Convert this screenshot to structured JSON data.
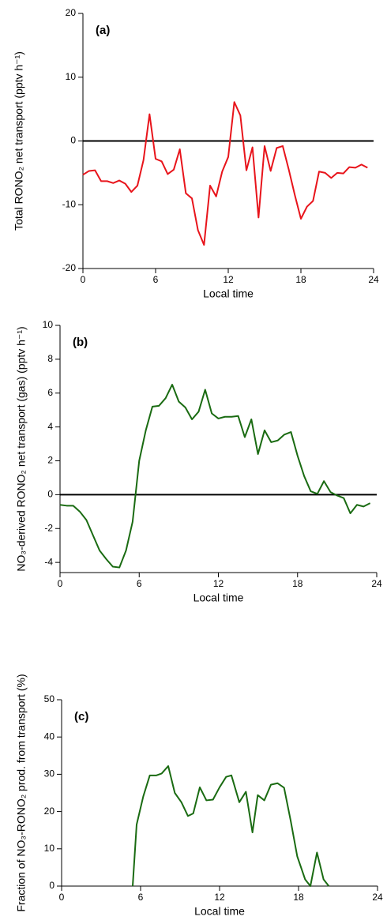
{
  "chart_data": [
    {
      "type": "line",
      "title": "(a)",
      "xlabel": "Local time",
      "ylabel": "Total RONO₂ net transport (pptv h⁻¹)",
      "x": [
        0,
        0.5,
        1,
        1.5,
        2,
        2.5,
        3,
        3.5,
        4,
        4.5,
        5,
        5.5,
        6,
        6.5,
        7,
        7.5,
        8,
        8.5,
        9,
        9.5,
        10,
        10.5,
        11,
        11.5,
        12,
        12.5,
        13,
        13.5,
        14,
        14.5,
        15,
        15.5,
        16,
        16.5,
        17,
        17.5,
        18,
        18.5,
        19,
        19.5,
        20,
        20.5,
        21,
        21.5,
        22,
        22.5,
        23,
        23.5
      ],
      "series": [
        {
          "color": "#e8141b",
          "values": [
            -5.3,
            -4.7,
            -4.6,
            -6.3,
            -6.3,
            -6.6,
            -6.2,
            -6.7,
            -8,
            -7,
            -3,
            4.2,
            -2.8,
            -3.2,
            -5.2,
            -4.5,
            -1.3,
            -8.2,
            -9,
            -14,
            -16.3,
            -7,
            -8.7,
            -4.8,
            -2.5,
            6.1,
            4,
            -4.6,
            -1,
            -12,
            -0.8,
            -4.7,
            -1.1,
            -0.8,
            -4.5,
            -8.5,
            -12.2,
            -10.3,
            -9.4,
            -4.8,
            -5,
            -5.8,
            -5,
            -5.1,
            -4.1,
            -4.2,
            -3.7,
            -4.2
          ]
        }
      ],
      "xlim": [
        0,
        24
      ],
      "xticks": [
        0,
        6,
        12,
        18,
        24
      ],
      "ylim": [
        -20,
        20
      ],
      "yticks": [
        -20,
        -10,
        0,
        10,
        20
      ],
      "zero_line": true
    },
    {
      "type": "line",
      "title": "(b)",
      "xlabel": "Local time",
      "ylabel": "NO₃-derived RONO₂ net transport (gas) (pptv h⁻¹)",
      "x": [
        0,
        0.5,
        1,
        1.5,
        2,
        2.5,
        3,
        3.5,
        4,
        4.5,
        5,
        5.5,
        6,
        6.5,
        7,
        7.5,
        8,
        8.5,
        9,
        9.5,
        10,
        10.5,
        11,
        11.5,
        12,
        12.5,
        13,
        13.5,
        14,
        14.5,
        15,
        15.5,
        16,
        16.5,
        17,
        17.5,
        18,
        18.5,
        19,
        19.5,
        20,
        20.5,
        21,
        21.5,
        22,
        22.5,
        23,
        23.5
      ],
      "series": [
        {
          "color": "#1a6b12",
          "values": [
            -0.6,
            -0.65,
            -0.65,
            -1,
            -1.5,
            -2.4,
            -3.3,
            -3.8,
            -4.25,
            -4.3,
            -3.3,
            -1.6,
            2,
            3.8,
            5.2,
            5.25,
            5.7,
            6.5,
            5.5,
            5.15,
            4.45,
            4.9,
            6.2,
            4.8,
            4.5,
            4.6,
            4.6,
            4.65,
            3.4,
            4.45,
            2.4,
            3.8,
            3.1,
            3.2,
            3.55,
            3.7,
            2.3,
            1.1,
            0.2,
            0.05,
            0.8,
            0.15,
            -0.05,
            -0.2,
            -1.1,
            -0.6,
            -0.7,
            -0.5
          ]
        }
      ],
      "xlim": [
        0,
        24
      ],
      "xticks": [
        0,
        6,
        12,
        18,
        24
      ],
      "ylim": [
        -4.6,
        10
      ],
      "yticks": [
        -4,
        -2,
        0,
        2,
        4,
        6,
        8,
        10
      ],
      "zero_line": true
    },
    {
      "type": "line",
      "title": "(c)",
      "xlabel": "Local time",
      "ylabel": "Fraction of NO₃-RONO₂ prod. from transport (%)",
      "x": [
        5.4,
        5.7,
        6.2,
        6.7,
        7.2,
        7.6,
        8.1,
        8.6,
        9.1,
        9.6,
        10,
        10.5,
        11,
        11.5,
        12,
        12.5,
        12.9,
        13.5,
        14,
        14.5,
        14.9,
        15.4,
        15.9,
        16.4,
        16.9,
        17.4,
        17.9,
        18.5,
        18.9,
        19.4,
        19.9,
        20.3
      ],
      "series": [
        {
          "color": "#1a6b12",
          "values": [
            0,
            16.5,
            24,
            29.7,
            29.7,
            30.2,
            32.2,
            25,
            22.5,
            18.8,
            19.5,
            26.5,
            23,
            23.2,
            26.5,
            29.3,
            29.7,
            22.5,
            25.3,
            14.4,
            24.4,
            23,
            27.2,
            27.6,
            26.4,
            17.6,
            8,
            1.8,
            0,
            9,
            1.8,
            0
          ]
        }
      ],
      "xlim": [
        0,
        24
      ],
      "xticks": [
        0,
        6,
        12,
        18,
        24
      ],
      "ylim": [
        0,
        50
      ],
      "yticks": [
        0,
        10,
        20,
        30,
        40,
        50
      ],
      "zero_line": false
    }
  ]
}
